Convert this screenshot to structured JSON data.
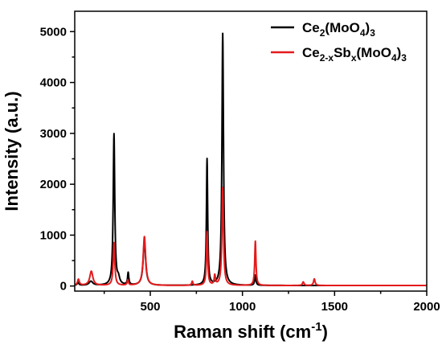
{
  "chart_data": {
    "type": "line",
    "xlabel": {
      "main": "Raman shift (cm",
      "sup": "-1",
      "tail": ")"
    },
    "ylabel": "Intensity (a.u.)",
    "xlim": [
      90,
      2000
    ],
    "ylim": [
      -100,
      5400
    ],
    "xticks": [
      500,
      1000,
      1500,
      2000
    ],
    "yticks": [
      0,
      1000,
      2000,
      3000,
      4000,
      5000
    ],
    "legend_position": "top-right",
    "grid": false,
    "series": [
      {
        "name": "Ce2(MoO4)3",
        "legend": [
          {
            "t": "Ce",
            "s": "n"
          },
          {
            "t": "2",
            "s": "sub"
          },
          {
            "t": "(MoO",
            "s": "n"
          },
          {
            "t": "4",
            "s": "sub"
          },
          {
            "t": ")",
            "s": "n"
          },
          {
            "t": "3",
            "s": "sub"
          }
        ],
        "color": "#000000",
        "baseline": 10,
        "peaks": [
          {
            "x": 108,
            "height": 60,
            "width": 5
          },
          {
            "x": 178,
            "height": 80,
            "width": 12
          },
          {
            "x": 303,
            "height": 2970,
            "width": 5
          },
          {
            "x": 327,
            "height": 120,
            "width": 8
          },
          {
            "x": 380,
            "height": 240,
            "width": 4
          },
          {
            "x": 468,
            "height": 880,
            "width": 8
          },
          {
            "x": 808,
            "height": 2480,
            "width": 4
          },
          {
            "x": 893,
            "height": 4950,
            "width": 5
          },
          {
            "x": 1070,
            "height": 200,
            "width": 4
          }
        ]
      },
      {
        "name": "Ce2-xSbx(MoO4)3",
        "legend": [
          {
            "t": "Ce",
            "s": "n"
          },
          {
            "t": "2-x",
            "s": "sub"
          },
          {
            "t": "Sb",
            "s": "n"
          },
          {
            "t": "x",
            "s": "sub"
          },
          {
            "t": "(MoO",
            "s": "n"
          },
          {
            "t": "4",
            "s": "sub"
          },
          {
            "t": ")",
            "s": "n"
          },
          {
            "t": "3",
            "s": "sub"
          }
        ],
        "color": "#e41a1c",
        "baseline": 10,
        "peaks": [
          {
            "x": 110,
            "height": 120,
            "width": 6
          },
          {
            "x": 180,
            "height": 280,
            "width": 10
          },
          {
            "x": 303,
            "height": 840,
            "width": 5
          },
          {
            "x": 378,
            "height": 100,
            "width": 4
          },
          {
            "x": 468,
            "height": 960,
            "width": 8
          },
          {
            "x": 728,
            "height": 80,
            "width": 4
          },
          {
            "x": 808,
            "height": 1050,
            "width": 4
          },
          {
            "x": 850,
            "height": 190,
            "width": 4
          },
          {
            "x": 893,
            "height": 1920,
            "width": 5
          },
          {
            "x": 1070,
            "height": 870,
            "width": 4
          },
          {
            "x": 1330,
            "height": 70,
            "width": 5
          },
          {
            "x": 1390,
            "height": 130,
            "width": 5
          }
        ]
      }
    ]
  }
}
